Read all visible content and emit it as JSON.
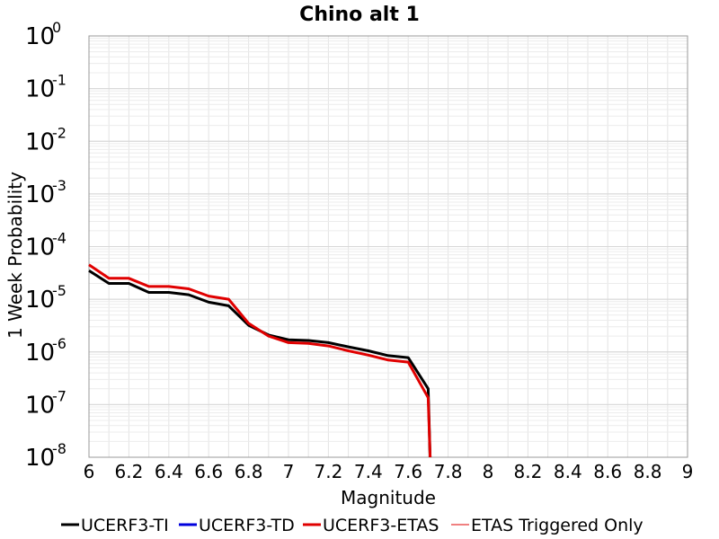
{
  "chart_data": {
    "type": "line",
    "title": "Chino alt 1",
    "xlabel": "Magnitude",
    "ylabel": "1 Week Probability",
    "xlim": [
      6,
      9
    ],
    "ylim": [
      1e-08,
      1
    ],
    "yscale": "log",
    "grid": true,
    "legend_position": "bottom",
    "x_tick_labels": [
      "6",
      "6.2",
      "6.4",
      "6.6",
      "6.8",
      "7",
      "7.2",
      "7.4",
      "7.6",
      "7.8",
      "8",
      "8.2",
      "8.4",
      "8.6",
      "8.8",
      "9"
    ],
    "y_tick_labels": [
      {
        "base": "10",
        "exp": "0"
      },
      {
        "base": "10",
        "exp": "-1"
      },
      {
        "base": "10",
        "exp": "-2"
      },
      {
        "base": "10",
        "exp": "-3"
      },
      {
        "base": "10",
        "exp": "-4"
      },
      {
        "base": "10",
        "exp": "-5"
      },
      {
        "base": "10",
        "exp": "-6"
      },
      {
        "base": "10",
        "exp": "-7"
      },
      {
        "base": "10",
        "exp": "-8"
      }
    ],
    "series": [
      {
        "name": "UCERF3-TI",
        "color": "#000000",
        "width": 3,
        "x": [
          6.0,
          6.1,
          6.2,
          6.3,
          6.4,
          6.5,
          6.6,
          6.7,
          6.8,
          6.9,
          7.0,
          7.1,
          7.2,
          7.3,
          7.4,
          7.5,
          7.6,
          7.7,
          7.71
        ],
        "y": [
          3.5e-05,
          2e-05,
          2e-05,
          1.35e-05,
          1.35e-05,
          1.22e-05,
          8.8e-06,
          7.5e-06,
          3.2e-06,
          2.1e-06,
          1.7e-06,
          1.65e-06,
          1.5e-06,
          1.25e-06,
          1.05e-06,
          8.5e-07,
          7.8e-07,
          2e-07,
          1e-08
        ]
      },
      {
        "name": "UCERF3-TD",
        "color": "#0000dd",
        "width": 3,
        "x": [],
        "y": []
      },
      {
        "name": "UCERF3-ETAS",
        "color": "#e00000",
        "width": 3,
        "x": [
          6.0,
          6.1,
          6.2,
          6.3,
          6.4,
          6.5,
          6.6,
          6.7,
          6.8,
          6.9,
          7.0,
          7.1,
          7.2,
          7.3,
          7.4,
          7.5,
          7.6,
          7.7,
          7.71
        ],
        "y": [
          4.5e-05,
          2.5e-05,
          2.5e-05,
          1.75e-05,
          1.75e-05,
          1.58e-05,
          1.15e-05,
          1e-05,
          3.5e-06,
          2e-06,
          1.5e-06,
          1.45e-06,
          1.3e-06,
          1.05e-06,
          8.7e-07,
          7e-07,
          6.4e-07,
          1.35e-07,
          1e-08
        ]
      },
      {
        "name": "ETAS Triggered Only",
        "color": "#e00000",
        "width": 1,
        "x": [],
        "y": []
      }
    ]
  }
}
